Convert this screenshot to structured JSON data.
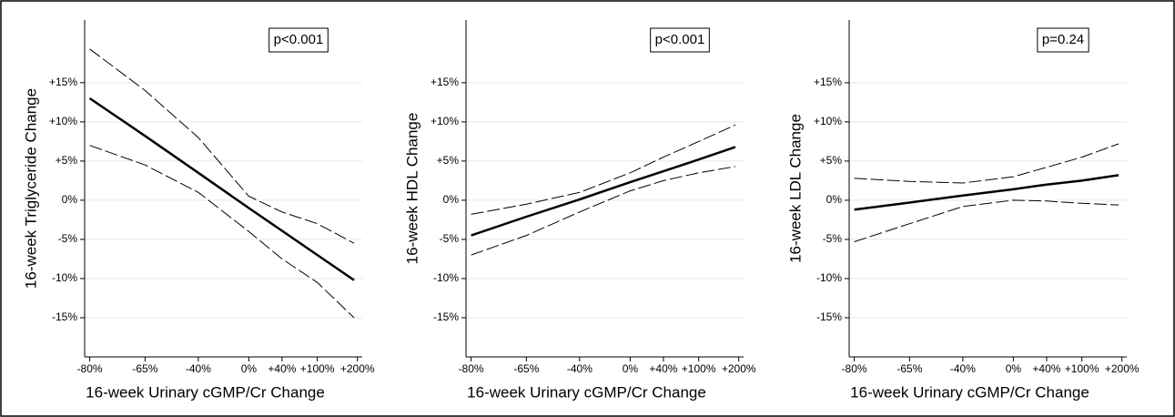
{
  "chart_data": [
    {
      "type": "line",
      "ylabel": "16-week Triglyceride Change",
      "xlabel": "16-week Urinary cGMP/Cr Change",
      "annotation": "p<0.001",
      "x_log_ratio": true,
      "grid": true,
      "color": "#000000",
      "xlim": [
        -81,
        215
      ],
      "ylim": [
        -20,
        23
      ],
      "xticks": [
        {
          "value": -80,
          "label": "-80%"
        },
        {
          "value": -65,
          "label": "-65%"
        },
        {
          "value": -40,
          "label": "-40%"
        },
        {
          "value": 0,
          "label": "0%"
        },
        {
          "value": 40,
          "label": "+40%"
        },
        {
          "value": 100,
          "label": "+100%"
        },
        {
          "value": 200,
          "label": "+200%"
        }
      ],
      "yticks": [
        {
          "value": -15,
          "label": "-15%"
        },
        {
          "value": -10,
          "label": "-10%"
        },
        {
          "value": -5,
          "label": "-5%"
        },
        {
          "value": 0,
          "label": "0%"
        },
        {
          "value": 5,
          "label": "+5%"
        },
        {
          "value": 10,
          "label": "+10%"
        },
        {
          "value": 15,
          "label": "+15%"
        }
      ],
      "x": [
        -80,
        -65,
        -40,
        0,
        40,
        100,
        190
      ],
      "series": [
        {
          "dash": false,
          "values": [
            13,
            8.2,
            3.5,
            -1.0,
            -3.9,
            -7.0,
            -10.2
          ]
        },
        {
          "dash": true,
          "values": [
            19.3,
            14,
            8,
            0.5,
            -1.5,
            -3,
            -5.5
          ]
        },
        {
          "dash": true,
          "values": [
            7,
            4.5,
            1,
            -4,
            -7.5,
            -10.5,
            -15
          ]
        }
      ]
    },
    {
      "type": "line",
      "ylabel": "16-week HDL Change",
      "xlabel": "16-week Urinary cGMP/Cr Change",
      "annotation": "p<0.001",
      "x_log_ratio": true,
      "grid": true,
      "color": "#000000",
      "xlim": [
        -81,
        215
      ],
      "ylim": [
        -20,
        23
      ],
      "xticks": [
        {
          "value": -80,
          "label": "-80%"
        },
        {
          "value": -65,
          "label": "-65%"
        },
        {
          "value": -40,
          "label": "-40%"
        },
        {
          "value": 0,
          "label": "0%"
        },
        {
          "value": 40,
          "label": "+40%"
        },
        {
          "value": 100,
          "label": "+100%"
        },
        {
          "value": 200,
          "label": "+200%"
        }
      ],
      "yticks": [
        {
          "value": -15,
          "label": "-15%"
        },
        {
          "value": -10,
          "label": "-10%"
        },
        {
          "value": -5,
          "label": "-5%"
        },
        {
          "value": 0,
          "label": "0%"
        },
        {
          "value": 5,
          "label": "+5%"
        },
        {
          "value": 10,
          "label": "+10%"
        },
        {
          "value": 15,
          "label": "+15%"
        }
      ],
      "x": [
        -80,
        -65,
        -40,
        0,
        40,
        100,
        190
      ],
      "series": [
        {
          "dash": false,
          "values": [
            -4.5,
            -2.1,
            0.1,
            2.3,
            3.7,
            5.2,
            6.8
          ]
        },
        {
          "dash": true,
          "values": [
            -1.8,
            -0.5,
            1,
            3.5,
            5.5,
            7.5,
            9.6
          ]
        },
        {
          "dash": true,
          "values": [
            -7,
            -4.5,
            -1.5,
            1.2,
            2.5,
            3.5,
            4.3
          ]
        }
      ]
    },
    {
      "type": "line",
      "ylabel": "16-week LDL Change",
      "xlabel": "16-week Urinary cGMP/Cr Change",
      "annotation": "p=0.24",
      "x_log_ratio": true,
      "grid": true,
      "color": "#000000",
      "xlim": [
        -81,
        215
      ],
      "ylim": [
        -20,
        23
      ],
      "xticks": [
        {
          "value": -80,
          "label": "-80%"
        },
        {
          "value": -65,
          "label": "-65%"
        },
        {
          "value": -40,
          "label": "-40%"
        },
        {
          "value": 0,
          "label": "0%"
        },
        {
          "value": 40,
          "label": "+40%"
        },
        {
          "value": 100,
          "label": "+100%"
        },
        {
          "value": 200,
          "label": "+200%"
        }
      ],
      "yticks": [
        {
          "value": -15,
          "label": "-15%"
        },
        {
          "value": -10,
          "label": "-10%"
        },
        {
          "value": -5,
          "label": "-5%"
        },
        {
          "value": 0,
          "label": "0%"
        },
        {
          "value": 5,
          "label": "+5%"
        },
        {
          "value": 10,
          "label": "+10%"
        },
        {
          "value": 15,
          "label": "+15%"
        }
      ],
      "x": [
        -80,
        -65,
        -40,
        0,
        40,
        100,
        190
      ],
      "series": [
        {
          "dash": false,
          "values": [
            -1.2,
            -0.3,
            0.6,
            1.4,
            2.0,
            2.5,
            3.2
          ]
        },
        {
          "dash": true,
          "values": [
            2.8,
            2.4,
            2.2,
            3,
            4.2,
            5.5,
            7.2
          ]
        },
        {
          "dash": true,
          "values": [
            -5.3,
            -3,
            -0.8,
            0,
            -0.1,
            -0.4,
            -0.6
          ]
        }
      ]
    }
  ]
}
